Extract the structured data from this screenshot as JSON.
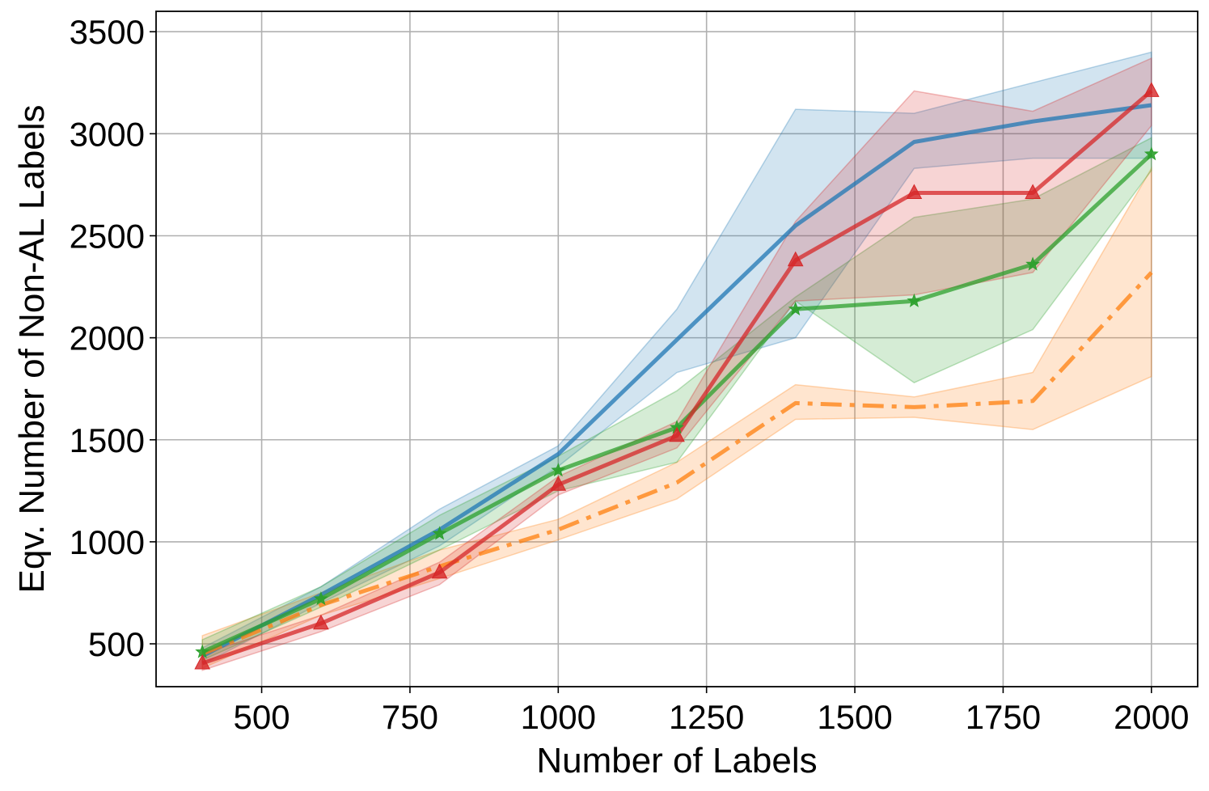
{
  "chart_data": {
    "type": "line",
    "title": "",
    "xlabel": "Number of Labels",
    "ylabel": "Eqv. Number of Non-AL Labels",
    "xlim": [
      322,
      2078
    ],
    "ylim": [
      290,
      3600
    ],
    "xticks": [
      500,
      750,
      1000,
      1250,
      1500,
      1750,
      2000
    ],
    "yticks": [
      500,
      1000,
      1500,
      2000,
      2500,
      3000,
      3500
    ],
    "grid": true,
    "x": [
      400,
      600,
      800,
      1000,
      1200,
      1400,
      1600,
      1800,
      2000
    ],
    "series": [
      {
        "color": "#1f77b4",
        "style": "solid",
        "marker": "none",
        "values": [
          440,
          740,
          1060,
          1430,
          1990,
          2550,
          2960,
          3060,
          3140
        ],
        "lower": [
          400,
          700,
          980,
          1370,
          1830,
          2000,
          2830,
          2880,
          2880
        ],
        "upper": [
          480,
          780,
          1160,
          1470,
          2140,
          3120,
          3100,
          3250,
          3400
        ]
      },
      {
        "color": "#ff7f0e",
        "style": "dashdot",
        "marker": "none",
        "values": [
          450,
          690,
          880,
          1060,
          1290,
          1680,
          1660,
          1690,
          2320
        ],
        "lower": [
          380,
          640,
          820,
          1010,
          1210,
          1600,
          1610,
          1550,
          1810
        ],
        "upper": [
          540,
          750,
          960,
          1110,
          1390,
          1770,
          1710,
          1830,
          2830
        ]
      },
      {
        "color": "#2ca02c",
        "style": "solid",
        "marker": "star",
        "values": [
          460,
          720,
          1040,
          1350,
          1560,
          2140,
          2180,
          2360,
          2900
        ],
        "lower": [
          420,
          680,
          960,
          1250,
          1390,
          2180,
          1780,
          2040,
          2820
        ],
        "upper": [
          520,
          780,
          1130,
          1420,
          1740,
          2200,
          2590,
          2680,
          2980
        ]
      },
      {
        "color": "#d62728",
        "style": "solid",
        "marker": "triangle",
        "values": [
          405,
          600,
          850,
          1280,
          1520,
          2380,
          2710,
          2710,
          3210
        ],
        "lower": [
          370,
          560,
          790,
          1230,
          1460,
          2180,
          2210,
          2320,
          3040
        ],
        "upper": [
          450,
          640,
          900,
          1320,
          1590,
          2570,
          3210,
          3110,
          3370
        ]
      }
    ]
  }
}
